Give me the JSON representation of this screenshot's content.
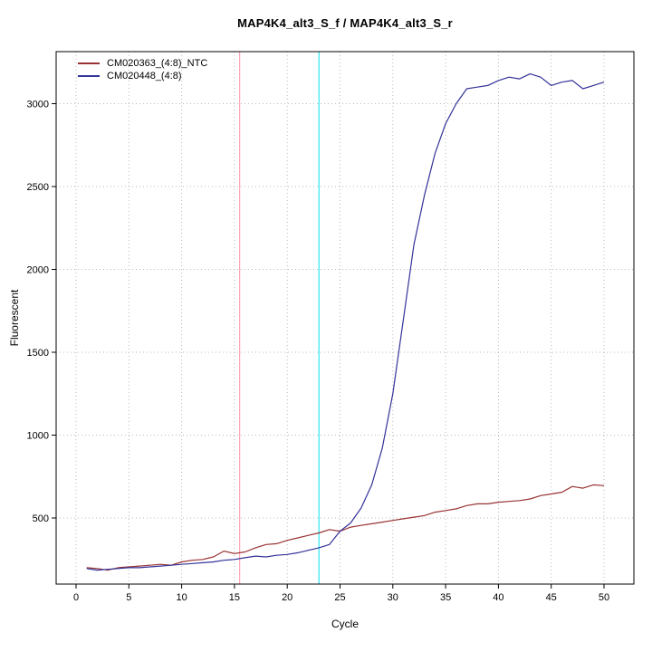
{
  "chart_data": {
    "type": "line",
    "title": "MAP4K4_alt3_S_f / MAP4K4_alt3_S_r",
    "xlabel": "Cycle",
    "ylabel": "Fluorescent",
    "xlim": [
      0,
      50
    ],
    "ylim": [
      100,
      3320
    ],
    "x_ticks": [
      0,
      5,
      10,
      15,
      20,
      25,
      30,
      35,
      40,
      45,
      50
    ],
    "y_ticks": [
      500,
      1000,
      1500,
      2000,
      2500,
      3000
    ],
    "grid": "dotted",
    "legend_position": "top-left",
    "x": [
      1,
      2,
      3,
      4,
      5,
      6,
      7,
      8,
      9,
      10,
      11,
      12,
      13,
      14,
      15,
      16,
      17,
      18,
      19,
      20,
      21,
      22,
      23,
      24,
      25,
      26,
      27,
      28,
      29,
      30,
      31,
      32,
      33,
      34,
      35,
      36,
      37,
      38,
      39,
      40,
      41,
      42,
      43,
      44,
      45,
      46,
      47,
      48,
      49,
      50
    ],
    "series": [
      {
        "name": "CM020363_(4:8)_NTC",
        "color": "#993333",
        "values": [
          200,
          195,
          185,
          200,
          205,
          210,
          215,
          220,
          215,
          235,
          245,
          250,
          265,
          300,
          285,
          295,
          320,
          340,
          345,
          365,
          380,
          395,
          410,
          430,
          420,
          445,
          455,
          465,
          475,
          485,
          495,
          505,
          515,
          535,
          545,
          555,
          575,
          585,
          585,
          595,
          600,
          605,
          615,
          635,
          645,
          655,
          690,
          680,
          700,
          695
        ]
      },
      {
        "name": "CM020448_(4:8)",
        "color": "#333399",
        "values": [
          195,
          185,
          190,
          195,
          200,
          200,
          205,
          210,
          215,
          220,
          225,
          230,
          235,
          245,
          250,
          260,
          270,
          265,
          275,
          280,
          290,
          305,
          320,
          340,
          420,
          470,
          560,
          700,
          920,
          1250,
          1700,
          2150,
          2450,
          2700,
          2880,
          3000,
          3090,
          3100,
          3110,
          3140,
          3160,
          3150,
          3180,
          3160,
          3110,
          3130,
          3140,
          3090,
          3110,
          3130
        ]
      }
    ],
    "threshold_lines": [
      {
        "x": 15.5,
        "color": "#ff8fa3"
      },
      {
        "x": 23,
        "color": "#00e0ee"
      }
    ],
    "grid_color": "#b8b8b8",
    "frame_color": "#000000"
  }
}
